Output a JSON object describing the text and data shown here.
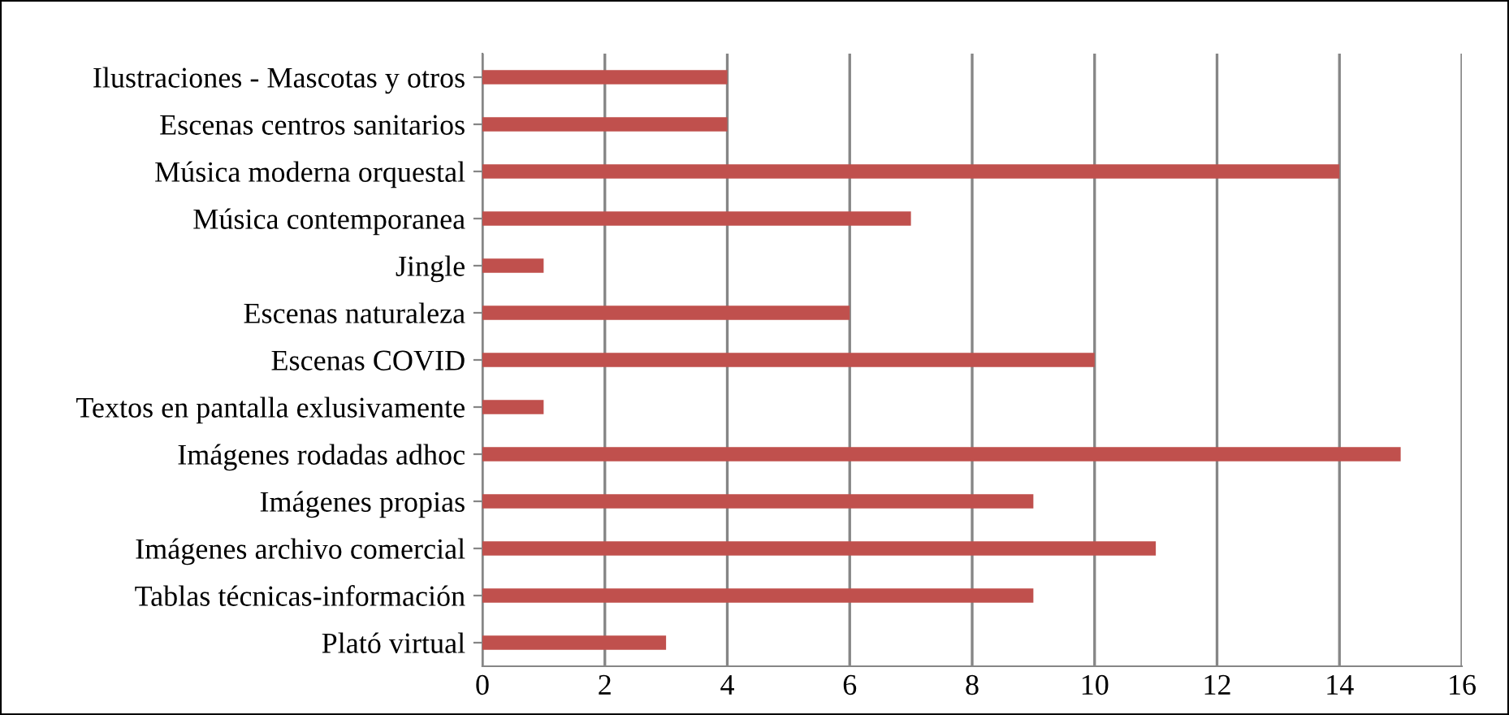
{
  "chart_data": {
    "type": "bar",
    "orientation": "horizontal",
    "categories": [
      "Ilustraciones - Mascotas y otros",
      "Escenas centros sanitarios",
      "Música moderna orquestal",
      "Música contemporanea",
      "Jingle",
      "Escenas naturaleza",
      "Escenas COVID",
      "Textos en pantalla exlusivamente",
      "Imágenes rodadas adhoc",
      "Imágenes propias",
      "Imágenes archivo comercial",
      "Tablas técnicas-información",
      "Plató virtual"
    ],
    "values": [
      4,
      4,
      14,
      7,
      1,
      6,
      10,
      1,
      15,
      9,
      11,
      9,
      3
    ],
    "color": "#c0504d",
    "xlim": [
      0,
      16
    ],
    "xticks": [
      0,
      2,
      4,
      6,
      8,
      10,
      12,
      14,
      16
    ],
    "grid": "x",
    "legend": false
  }
}
